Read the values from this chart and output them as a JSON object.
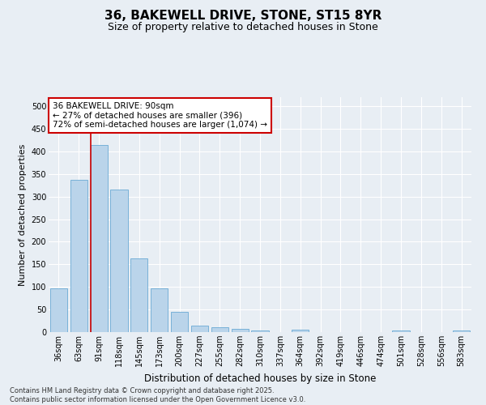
{
  "title1": "36, BAKEWELL DRIVE, STONE, ST15 8YR",
  "title2": "Size of property relative to detached houses in Stone",
  "xlabel": "Distribution of detached houses by size in Stone",
  "ylabel": "Number of detached properties",
  "categories": [
    "36sqm",
    "63sqm",
    "91sqm",
    "118sqm",
    "145sqm",
    "173sqm",
    "200sqm",
    "227sqm",
    "255sqm",
    "282sqm",
    "310sqm",
    "337sqm",
    "364sqm",
    "392sqm",
    "419sqm",
    "446sqm",
    "474sqm",
    "501sqm",
    "528sqm",
    "556sqm",
    "583sqm"
  ],
  "values": [
    97,
    337,
    415,
    315,
    163,
    97,
    45,
    15,
    10,
    8,
    3,
    0,
    5,
    0,
    0,
    0,
    0,
    4,
    0,
    0,
    3
  ],
  "bar_color": "#bad4ea",
  "bar_edge_color": "#6aaad4",
  "highlight_bar_index": 2,
  "highlight_color": "#cc0000",
  "annotation_text": "36 BAKEWELL DRIVE: 90sqm\n← 27% of detached houses are smaller (396)\n72% of semi-detached houses are larger (1,074) →",
  "annotation_box_color": "#cc0000",
  "ylim": [
    0,
    520
  ],
  "yticks": [
    0,
    50,
    100,
    150,
    200,
    250,
    300,
    350,
    400,
    450,
    500
  ],
  "background_color": "#e8eef4",
  "grid_color": "#ffffff",
  "footer": "Contains HM Land Registry data © Crown copyright and database right 2025.\nContains public sector information licensed under the Open Government Licence v3.0.",
  "title1_fontsize": 11,
  "title2_fontsize": 9,
  "xlabel_fontsize": 8.5,
  "ylabel_fontsize": 8,
  "tick_fontsize": 7,
  "annotation_fontsize": 7.5,
  "footer_fontsize": 6
}
